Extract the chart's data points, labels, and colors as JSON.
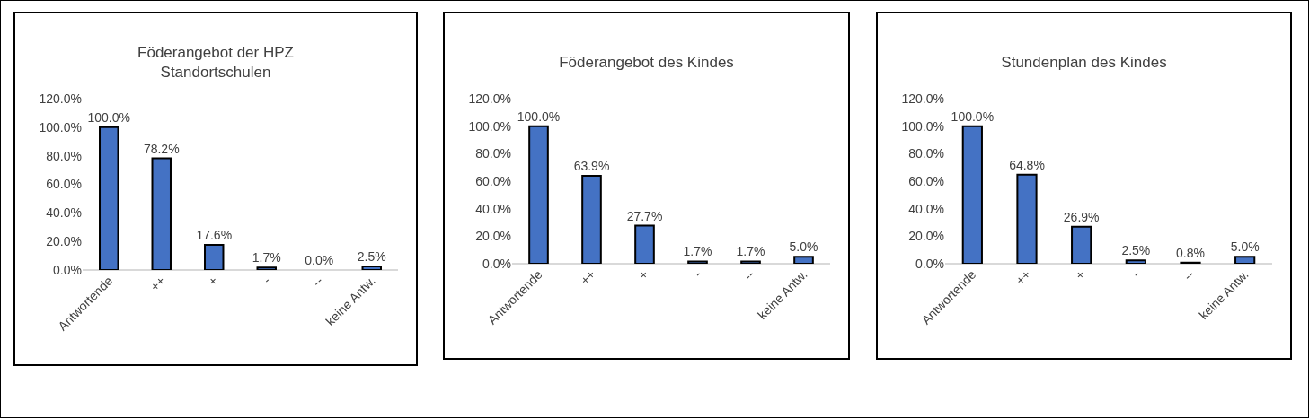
{
  "chart_data": [
    {
      "type": "bar",
      "title": "Föderangebot der HPZ\nStandortschulen",
      "categories": [
        "Antwortende",
        "++",
        "+",
        "-",
        "--",
        "keine Antw."
      ],
      "values": [
        100,
        78.2,
        17.6,
        1.7,
        0,
        2.5
      ],
      "value_labels": [
        "100.0%",
        "78.2%",
        "17.6%",
        "1.7%",
        "0.0%",
        "2.5%"
      ],
      "color": "#4472c4",
      "ylim": [
        0,
        120
      ],
      "yticks": [
        {
          "value": 0,
          "label": "0.0%"
        },
        {
          "value": 20,
          "label": "20.0%"
        },
        {
          "value": 40,
          "label": "40.0%"
        },
        {
          "value": 60,
          "label": "60.0%"
        },
        {
          "value": 80,
          "label": "80.0%"
        },
        {
          "value": 100,
          "label": "100.0%"
        },
        {
          "value": 120,
          "label": "120.0%"
        }
      ],
      "grid": false
    },
    {
      "type": "bar",
      "title": "Föderangebot des Kindes",
      "categories": [
        "Antwortende",
        "++",
        "+",
        "-",
        "--",
        "keine Antw."
      ],
      "values": [
        100,
        63.9,
        27.7,
        1.7,
        1.7,
        5.0
      ],
      "value_labels": [
        "100.0%",
        "63.9%",
        "27.7%",
        "1.7%",
        "1.7%",
        "5.0%"
      ],
      "color": "#4472c4",
      "ylim": [
        0,
        120
      ],
      "yticks": [
        {
          "value": 0,
          "label": "0.0%"
        },
        {
          "value": 20,
          "label": "20.0%"
        },
        {
          "value": 40,
          "label": "40.0%"
        },
        {
          "value": 60,
          "label": "60.0%"
        },
        {
          "value": 80,
          "label": "80.0%"
        },
        {
          "value": 100,
          "label": "100.0%"
        },
        {
          "value": 120,
          "label": "120.0%"
        }
      ],
      "grid": false
    },
    {
      "type": "bar",
      "title": "Stundenplan des Kindes",
      "categories": [
        "Antwortende",
        "++",
        "+",
        "-",
        "--",
        "keine Antw."
      ],
      "values": [
        100,
        64.8,
        26.9,
        2.5,
        0.8,
        5.0
      ],
      "value_labels": [
        "100.0%",
        "64.8%",
        "26.9%",
        "2.5%",
        "0.8%",
        "5.0%"
      ],
      "color": "#4472c4",
      "ylim": [
        0,
        120
      ],
      "yticks": [
        {
          "value": 0,
          "label": "0.0%"
        },
        {
          "value": 20,
          "label": "20.0%"
        },
        {
          "value": 40,
          "label": "40.0%"
        },
        {
          "value": 60,
          "label": "60.0%"
        },
        {
          "value": 80,
          "label": "80.0%"
        },
        {
          "value": 100,
          "label": "100.0%"
        },
        {
          "value": 120,
          "label": "120.0%"
        }
      ],
      "grid": false
    }
  ]
}
